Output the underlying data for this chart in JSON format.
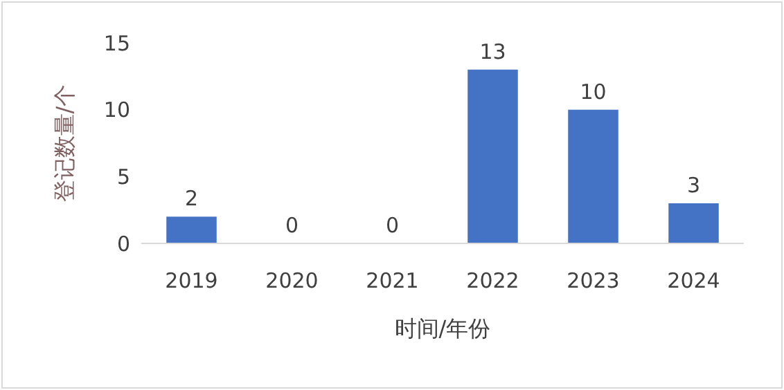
{
  "chart_data": {
    "type": "bar",
    "xlabel": "时间/年份",
    "ylabel": "登记数量/个",
    "categories": [
      "2019",
      "2020",
      "2021",
      "2022",
      "2023",
      "2024"
    ],
    "values": [
      2,
      0,
      0,
      13,
      10,
      3
    ],
    "color": "#4472c4",
    "ylim": [
      0,
      15
    ],
    "yticks": [
      0,
      5,
      10,
      15
    ],
    "data_labels": true,
    "grid": false
  }
}
